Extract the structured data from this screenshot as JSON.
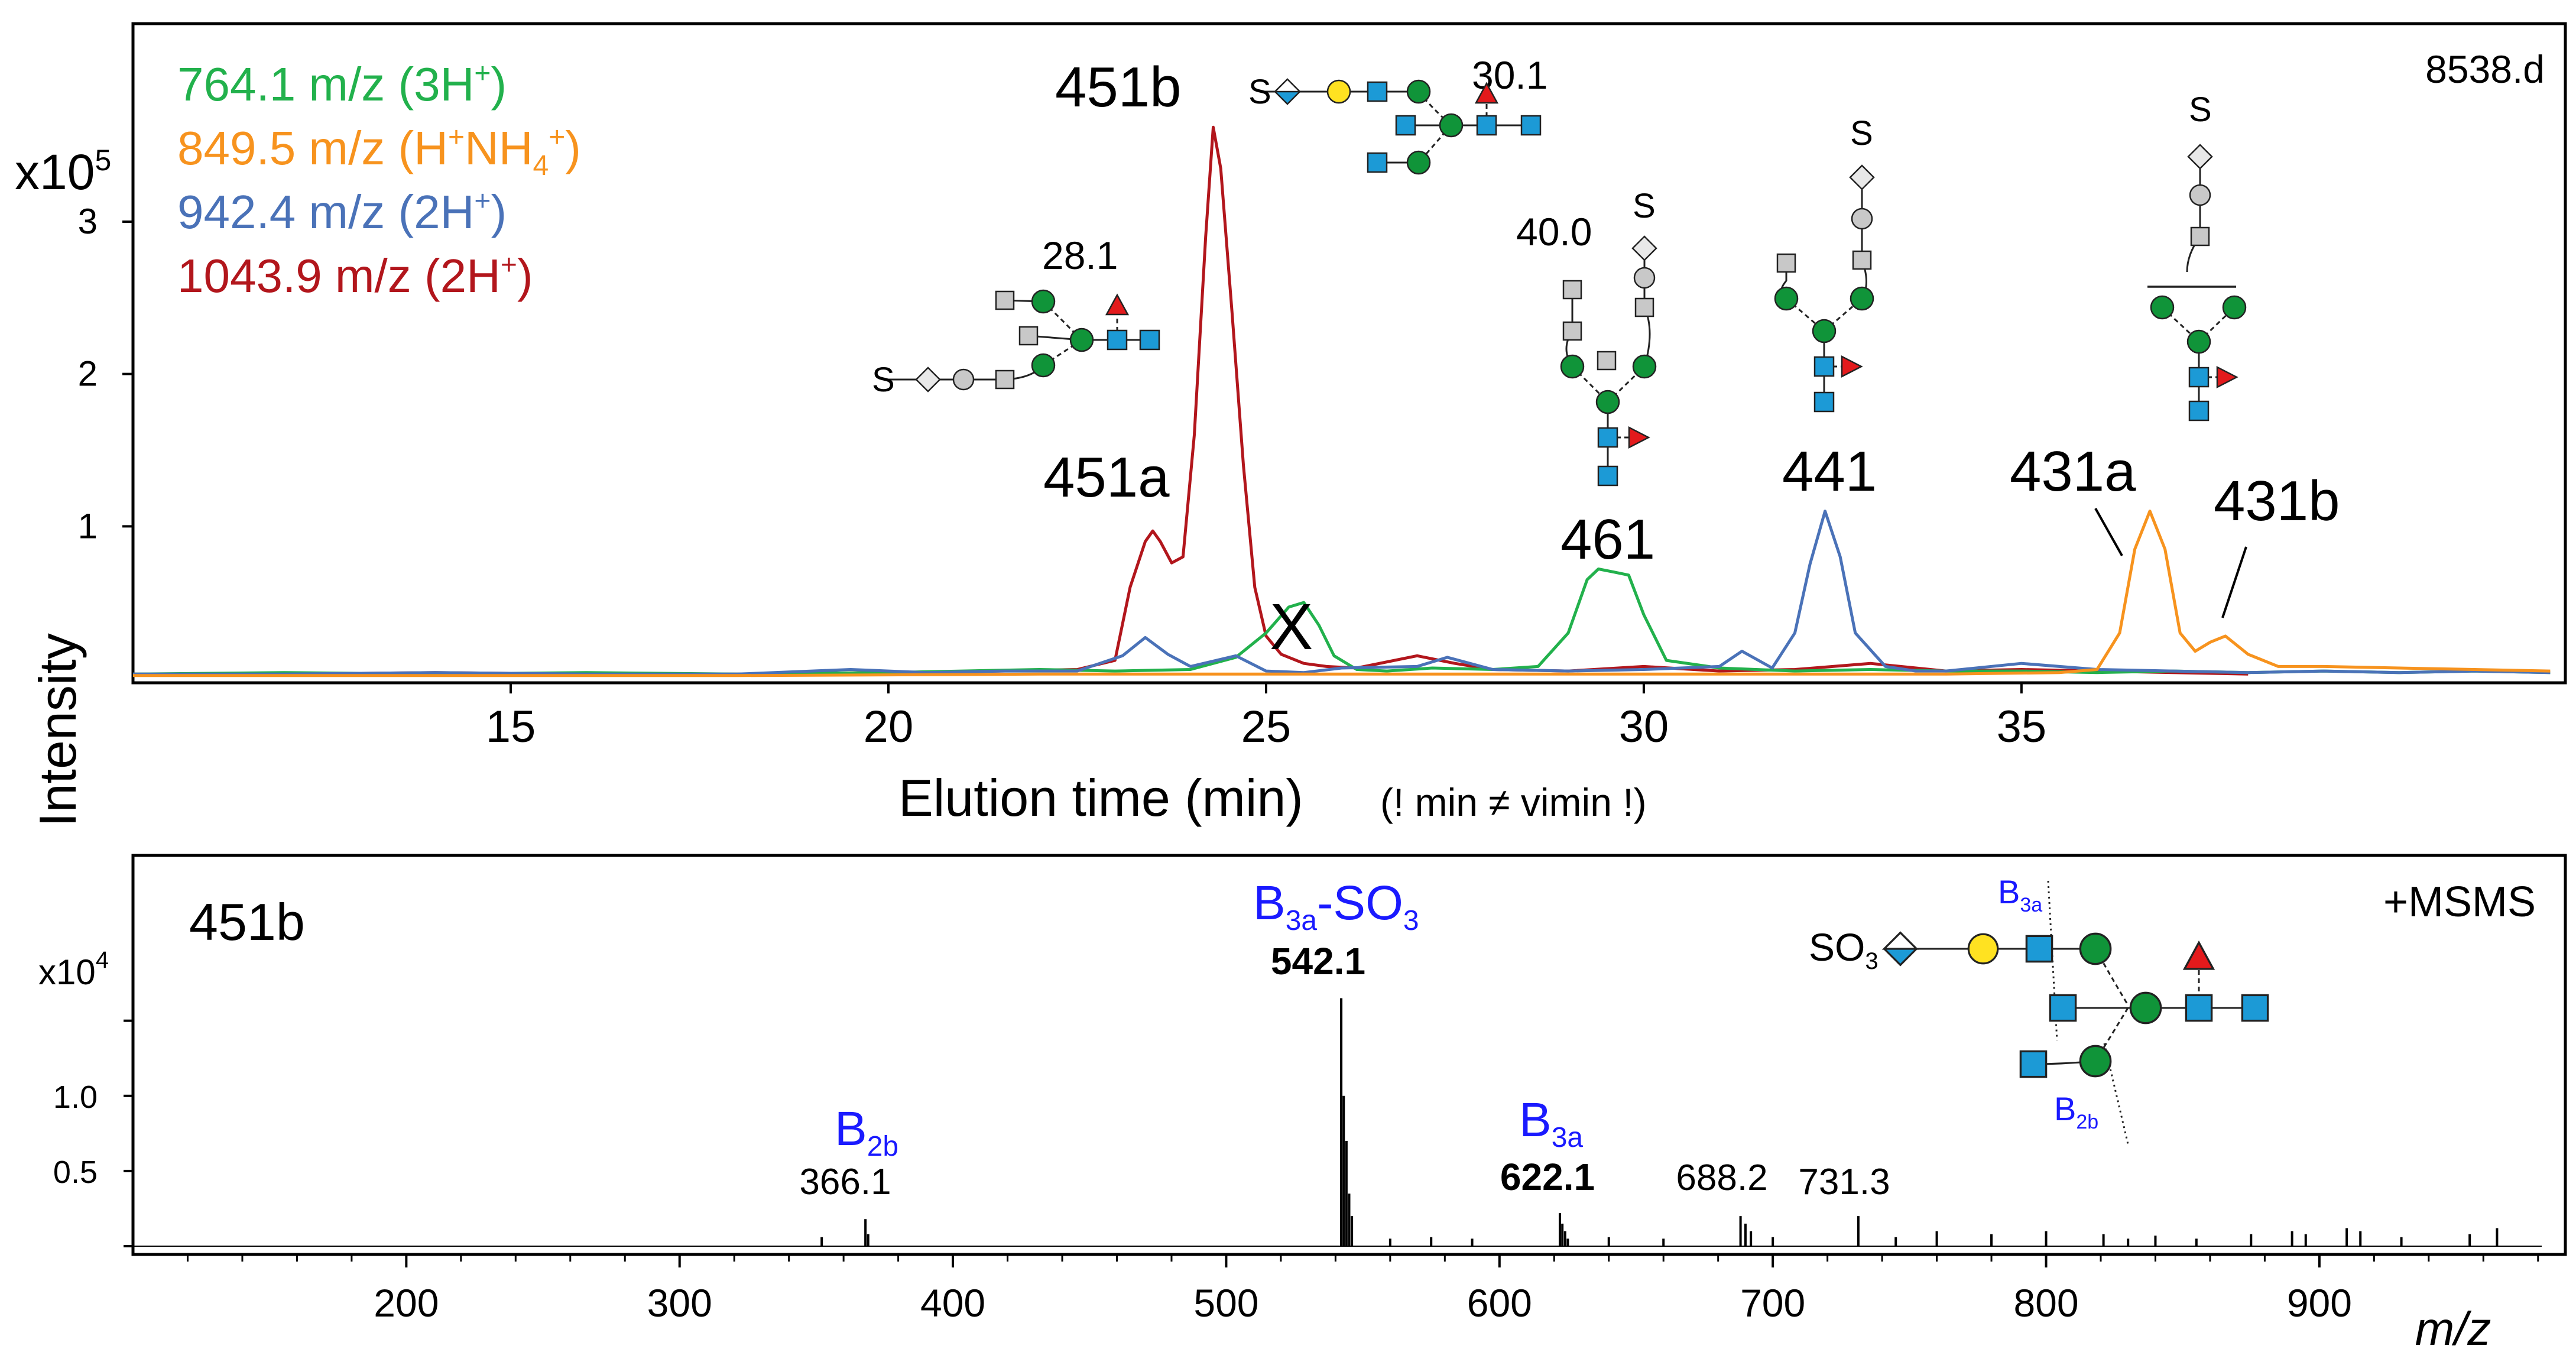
{
  "colors": {
    "green": "#22b14c",
    "orange": "#f7931e",
    "blue": "#4a72b8",
    "red": "#b2161c",
    "label_blue": "#1a1aff",
    "glc_green": "#109439",
    "glcnac_blue": "#1c9ad6",
    "fuc_red": "#e31a1c",
    "gal_yellow": "#ffe221",
    "grey": "#c8c8c8"
  },
  "chart_data": [
    {
      "type": "line",
      "title": "",
      "file_label": "8538.d",
      "xlabel": "Elution time (min)",
      "xlabel_note": "(! min ≠ vimin !)",
      "ylabel": "Intensity",
      "y_multiplier": "x10",
      "y_exponent": "5",
      "xlim": [
        10,
        42.2
      ],
      "ylim": [
        0,
        4.3
      ],
      "x_ticks": [
        15,
        20,
        25,
        30,
        35
      ],
      "x_tick_labels": [
        "15",
        "20",
        "25",
        "30",
        "35"
      ],
      "y_ticks": [
        1,
        2,
        3
      ],
      "y_tick_labels": [
        "1",
        "2",
        "3"
      ],
      "legend_position": "top-left",
      "legend": [
        {
          "pre": "764.1 m/z (3H",
          "sup": "+",
          "sub": "",
          "sup2": "",
          "post": ")",
          "color": "green"
        },
        {
          "pre": "849.5 m/z (H",
          "sup": "+",
          "sub": "4",
          "sup2": "+",
          "mid": "NH",
          "post": ")",
          "color": "orange"
        },
        {
          "pre": "942.4 m/z (2H",
          "sup": "+",
          "sub": "",
          "sup2": "",
          "post": ")",
          "color": "blue"
        },
        {
          "pre": "1043.9 m/z (2H",
          "sup": "+",
          "sub": "",
          "sup2": "",
          "post": ")",
          "color": "red"
        }
      ],
      "series": [
        {
          "name": "1043.9 m/z",
          "color": "red",
          "x": [
            10.0,
            12.0,
            14.0,
            16.0,
            18.0,
            20.0,
            21.5,
            22.5,
            23.0,
            23.2,
            23.4,
            23.5,
            23.6,
            23.75,
            23.9,
            24.05,
            24.2,
            24.3,
            24.4,
            24.55,
            24.7,
            24.85,
            25.0,
            25.2,
            25.5,
            25.8,
            26.2,
            27.0,
            27.5,
            28.0,
            29.0,
            30.0,
            31.0,
            32.0,
            33.0,
            34.0,
            35.0,
            36.0,
            37.0,
            38.0
          ],
          "y": [
            0.03,
            0.03,
            0.04,
            0.03,
            0.03,
            0.04,
            0.05,
            0.06,
            0.12,
            0.6,
            0.9,
            0.97,
            0.9,
            0.76,
            0.8,
            1.6,
            2.9,
            3.62,
            3.35,
            2.4,
            1.4,
            0.6,
            0.28,
            0.16,
            0.1,
            0.08,
            0.07,
            0.15,
            0.1,
            0.06,
            0.05,
            0.08,
            0.05,
            0.06,
            0.1,
            0.05,
            0.06,
            0.05,
            0.04,
            0.03
          ]
        },
        {
          "name": "764.1 m/z",
          "color": "green",
          "x": [
            10.0,
            12.0,
            14.0,
            16.0,
            18.0,
            20.0,
            22.0,
            23.0,
            24.0,
            24.6,
            25.0,
            25.3,
            25.5,
            25.7,
            25.9,
            26.2,
            26.6,
            27.2,
            28.0,
            28.6,
            29.0,
            29.25,
            29.4,
            29.6,
            29.8,
            30.0,
            30.3,
            31.0,
            32.0,
            33.0,
            34.0,
            35.0,
            36.0,
            37.0,
            38.0,
            39.0,
            40.0,
            41.0,
            42.0
          ],
          "y": [
            0.03,
            0.04,
            0.03,
            0.04,
            0.03,
            0.04,
            0.06,
            0.05,
            0.06,
            0.14,
            0.3,
            0.47,
            0.5,
            0.35,
            0.15,
            0.06,
            0.05,
            0.07,
            0.06,
            0.08,
            0.3,
            0.65,
            0.72,
            0.7,
            0.68,
            0.42,
            0.12,
            0.07,
            0.05,
            0.06,
            0.05,
            0.05,
            0.04,
            0.05,
            0.04,
            0.05,
            0.04,
            0.05,
            0.04
          ]
        },
        {
          "name": "942.4 m/z",
          "color": "blue",
          "x": [
            10.0,
            12.0,
            14.0,
            16.0,
            18.0,
            19.5,
            20.5,
            21.5,
            22.5,
            23.1,
            23.4,
            23.7,
            24.0,
            24.6,
            25.0,
            25.5,
            26.0,
            27.0,
            27.4,
            28.0,
            29.0,
            30.0,
            31.0,
            31.3,
            31.7,
            32.0,
            32.2,
            32.4,
            32.6,
            32.8,
            33.2,
            33.6,
            34.0,
            35.0,
            36.0,
            37.0,
            38.0,
            39.0,
            40.0,
            41.0,
            42.0
          ],
          "y": [
            0.03,
            0.03,
            0.04,
            0.03,
            0.03,
            0.06,
            0.04,
            0.05,
            0.05,
            0.15,
            0.27,
            0.16,
            0.08,
            0.15,
            0.05,
            0.04,
            0.07,
            0.08,
            0.14,
            0.06,
            0.05,
            0.06,
            0.08,
            0.18,
            0.07,
            0.3,
            0.75,
            1.1,
            0.8,
            0.3,
            0.08,
            0.05,
            0.05,
            0.1,
            0.06,
            0.05,
            0.04,
            0.05,
            0.04,
            0.05,
            0.04
          ]
        },
        {
          "name": "849.5 m/z",
          "color": "orange",
          "x": [
            10.0,
            14.0,
            18.0,
            22.0,
            26.0,
            30.0,
            34.0,
            35.5,
            36.0,
            36.3,
            36.5,
            36.7,
            36.9,
            37.1,
            37.3,
            37.5,
            37.7,
            38.0,
            38.4,
            39.0,
            40.0,
            41.0,
            42.0
          ],
          "y": [
            0.02,
            0.02,
            0.02,
            0.03,
            0.03,
            0.03,
            0.03,
            0.04,
            0.06,
            0.3,
            0.85,
            1.1,
            0.85,
            0.3,
            0.18,
            0.24,
            0.28,
            0.16,
            0.08,
            0.08,
            0.07,
            0.06,
            0.05
          ]
        }
      ],
      "peak_labels": [
        "451b",
        "451a",
        "461",
        "441",
        "431a",
        "431b"
      ],
      "cross_mark": "X",
      "glycan_numbers": [
        "28.1",
        "30.1",
        "40.0"
      ],
      "s_labels": [
        "S",
        "S",
        "S",
        "S",
        "S"
      ]
    },
    {
      "type": "bar",
      "title": "451b",
      "mode_label": "+MSMS",
      "xlabel": "m/z",
      "y_multiplier": "x10",
      "y_exponent": "4",
      "xlim": [
        100,
        990
      ],
      "ylim": [
        0,
        2.6
      ],
      "x_ticks": [
        200,
        300,
        400,
        500,
        600,
        700,
        800,
        900
      ],
      "x_tick_labels": [
        "200",
        "300",
        "400",
        "500",
        "600",
        "700",
        "800",
        "900"
      ],
      "y_ticks": [
        0.5,
        1.0
      ],
      "y_tick_labels": [
        "0.5",
        "1.0"
      ],
      "peaks_mz": [
        352,
        368,
        369,
        542.1,
        543,
        544,
        545,
        546,
        560,
        575,
        590,
        622.1,
        623,
        624,
        625,
        640,
        660,
        688.2,
        690,
        692,
        700,
        731.3,
        745,
        760,
        780,
        800,
        821,
        830,
        840,
        855,
        875,
        890,
        895,
        910,
        915,
        930,
        955,
        965
      ],
      "peaks_int": [
        0.06,
        0.18,
        0.08,
        1.65,
        1.0,
        0.7,
        0.35,
        0.2,
        0.05,
        0.06,
        0.05,
        0.22,
        0.15,
        0.1,
        0.05,
        0.06,
        0.05,
        0.2,
        0.15,
        0.1,
        0.06,
        0.2,
        0.06,
        0.1,
        0.08,
        0.1,
        0.08,
        0.05,
        0.07,
        0.05,
        0.08,
        0.1,
        0.08,
        0.12,
        0.1,
        0.06,
        0.08,
        0.12
      ],
      "annotations": [
        {
          "ion": "B",
          "sub": "2b",
          "mz": "366.1",
          "bold": false
        },
        {
          "ion": "B",
          "sub": "3a",
          "suffix": "-SO",
          "suffix_sub": "3",
          "mz": "542.1",
          "bold": true
        },
        {
          "ion": "B",
          "sub": "3a",
          "mz": "622.1",
          "bold": true
        }
      ],
      "unlabeled_peak_texts": [
        "688.2",
        "731.3"
      ],
      "structure_labels": {
        "so3": "SO",
        "so3_sub": "3",
        "b3a": "B",
        "b3a_sub": "3a",
        "b2b": "B",
        "b2b_sub": "2b"
      }
    }
  ]
}
